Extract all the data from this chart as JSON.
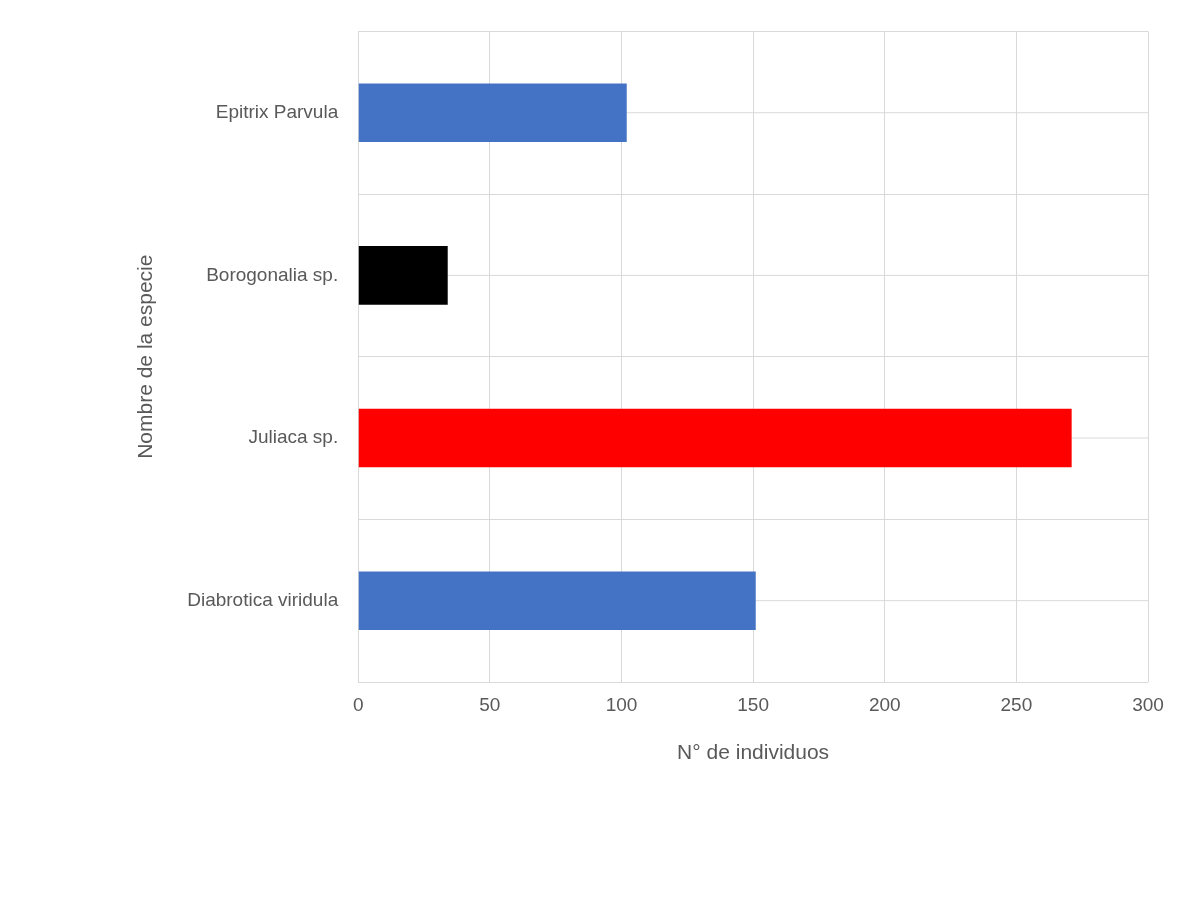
{
  "chart_data": {
    "type": "bar",
    "orientation": "horizontal",
    "xlabel": "N° de individuos",
    "ylabel": "Nombre de la especie",
    "categories": [
      "Epitrix Parvula",
      "Borogonalia sp.",
      "Juliaca sp.",
      "Diabrotica viridula"
    ],
    "values": [
      102,
      34,
      271,
      151
    ],
    "colors": [
      "#4472c4",
      "#000000",
      "#ff0000",
      "#4472c4"
    ],
    "xlim": [
      0,
      300
    ],
    "xticks": [
      0,
      50,
      100,
      150,
      200,
      250,
      300
    ],
    "grid": true,
    "legend": false
  }
}
